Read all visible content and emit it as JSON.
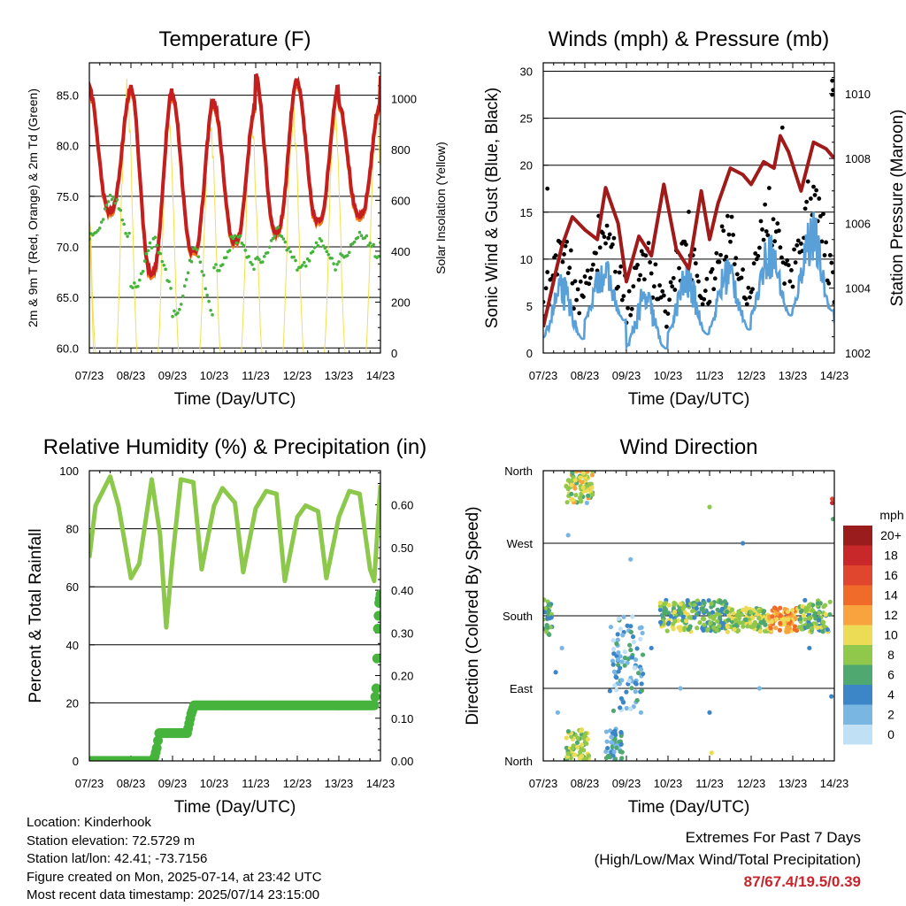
{
  "station": {
    "location": "Location: Kinderhook",
    "elevation": "Station elevation: 72.5729 m",
    "latlon": "Station lat/lon: 42.41; -73.7156",
    "created": "Figure created on Mon, 2025-07-14, at 23:42 UTC",
    "latest": "Most recent data timestamp: 2025/07/14 23:15:00"
  },
  "extremes": {
    "title": "Extremes For Past 7 Days",
    "subtitle": "(High/Low/Max Wind/Total Precipitation)",
    "values": "87/67.4/19.5/0.39"
  },
  "colors": {
    "temp_2m": "#c41e1e",
    "temp_9m": "#f07c1e",
    "dewpoint": "#46b43c",
    "solar": "#f2de50",
    "gust": "#000000",
    "wind": "#5aa0d8",
    "pressure": "#a01a1a",
    "rh": "#8cc84b",
    "precip": "#46b43c"
  },
  "chart_data": [
    {
      "id": "temperature",
      "type": "line",
      "title": "Temperature (F)",
      "xlabel": "Time (Day/UTC)",
      "ylabel": "2m & 9m T (Red, Orange) & 2m Td (Green)",
      "ylabel_right": "Solar Insolation (Yellow)",
      "x_ticks": [
        "07/23",
        "08/23",
        "09/23",
        "10/23",
        "11/23",
        "12/23",
        "13/23",
        "14/23"
      ],
      "ylim": [
        59.5,
        88.2
      ],
      "y_ticks": [
        "60.0",
        "65.0",
        "70.0",
        "75.0",
        "80.0",
        "85.0"
      ],
      "y_tick_values": [
        60,
        65,
        70,
        75,
        80,
        85
      ],
      "y2lim": [
        0,
        1140
      ],
      "y2_ticks": [
        "0",
        "200",
        "400",
        "600",
        "800",
        "1000"
      ],
      "y2_tick_values": [
        0,
        200,
        400,
        600,
        800,
        1000
      ],
      "grid": true,
      "daily_temp_2m": [
        {
          "day": 0,
          "max": 85.5,
          "min": 73.5
        },
        {
          "day": 1,
          "max": 85.8,
          "min": 67.4
        },
        {
          "day": 2,
          "max": 84.8,
          "min": 69.5
        },
        {
          "day": 3,
          "max": 84.0,
          "min": 70.5
        },
        {
          "day": 4,
          "max": 86.8,
          "min": 71.5
        },
        {
          "day": 5,
          "max": 86.0,
          "min": 72.5
        },
        {
          "day": 6,
          "max": 84.2,
          "min": 73.0
        },
        {
          "day": 7,
          "max": 87.0,
          "min": 72.0
        }
      ],
      "daily_dewpoint": [
        {
          "day": 0,
          "max": 75.0,
          "min": 71.0
        },
        {
          "day": 1,
          "max": 70.5,
          "min": 66.0
        },
        {
          "day": 2,
          "max": 69.5,
          "min": 63.5
        },
        {
          "day": 3,
          "max": 71.0,
          "min": 68.0
        },
        {
          "day": 4,
          "max": 71.5,
          "min": 68.5
        },
        {
          "day": 5,
          "max": 70.5,
          "min": 68.0
        },
        {
          "day": 6,
          "max": 71.0,
          "min": 69.0
        },
        {
          "day": 7,
          "max": 74.0,
          "min": 71.0
        }
      ],
      "daily_solar_peak": [
        850,
        1100,
        980,
        1000,
        980,
        1010,
        990,
        1030
      ]
    },
    {
      "id": "winds",
      "type": "scatter",
      "title": "Winds (mph) & Pressure (mb)",
      "xlabel": "Time (Day/UTC)",
      "ylabel": "Sonic Wind & Gust (Blue, Black)",
      "ylabel_right": "Station Pressure (Maroon)",
      "x_ticks": [
        "07/23",
        "08/23",
        "09/23",
        "10/23",
        "11/23",
        "12/23",
        "13/23",
        "14/23"
      ],
      "ylim": [
        0,
        30.9
      ],
      "y_ticks": [
        "0",
        "5",
        "10",
        "15",
        "20",
        "25",
        "30"
      ],
      "y_tick_values": [
        0,
        5,
        10,
        15,
        20,
        25,
        30
      ],
      "y2lim": [
        1002,
        1010.95
      ],
      "y2_ticks": [
        "1002",
        "1004",
        "1006",
        "1008",
        "1010"
      ],
      "y2_tick_values": [
        1002,
        1004,
        1006,
        1008,
        1010
      ],
      "grid": true,
      "pressure": {
        "x": [
          0.0,
          0.3,
          0.45,
          0.7,
          1.0,
          1.3,
          1.5,
          1.8,
          2.0,
          2.3,
          2.6,
          2.9,
          3.2,
          3.5,
          3.8,
          4.0,
          4.2,
          4.5,
          4.8,
          5.0,
          5.3,
          5.55,
          5.7,
          5.9,
          6.2,
          6.5,
          6.8,
          7.0
        ],
        "y": [
          1002.8,
          1004.5,
          1005.3,
          1006.2,
          1005.8,
          1005.5,
          1007.1,
          1006.0,
          1004.2,
          1005.6,
          1005.0,
          1007.2,
          1005.2,
          1004.6,
          1007.0,
          1005.5,
          1006.6,
          1007.7,
          1007.5,
          1007.2,
          1007.9,
          1007.7,
          1008.7,
          1008.2,
          1007.0,
          1008.5,
          1008.3,
          1008.0
        ]
      },
      "wind_baseline": [
        {
          "day": 0,
          "low": 1.5,
          "high": 6.5
        },
        {
          "day": 1,
          "low": 3.5,
          "high": 8.5
        },
        {
          "day": 2,
          "low": 0.5,
          "high": 5.5
        },
        {
          "day": 3,
          "low": 2.0,
          "high": 7.5
        },
        {
          "day": 4,
          "low": 2.5,
          "high": 8.5
        },
        {
          "day": 5,
          "low": 4.0,
          "high": 10.5
        },
        {
          "day": 6,
          "low": 4.5,
          "high": 12.5
        },
        {
          "day": 7,
          "low": 3.0,
          "high": 10.0
        }
      ],
      "gust_extremes": [
        {
          "x": 6.95,
          "y": 29.0
        },
        {
          "x": 6.95,
          "y": 27.5
        },
        {
          "x": 6.97,
          "y": 28.0
        },
        {
          "x": 5.75,
          "y": 24.0
        },
        {
          "x": 0.1,
          "y": 17.5
        }
      ]
    },
    {
      "id": "humidity",
      "type": "line",
      "title": "Relative Humidity (%) & Precipitation (in)",
      "xlabel": "Time (Day/UTC)",
      "ylabel": "Percent & Total Rainfall",
      "x_ticks": [
        "07/23",
        "08/23",
        "09/23",
        "10/23",
        "11/23",
        "12/23",
        "13/23",
        "14/23"
      ],
      "ylim": [
        0,
        100
      ],
      "y_ticks": [
        "0",
        "20",
        "40",
        "60",
        "80",
        "100"
      ],
      "y_tick_values": [
        0,
        20,
        40,
        60,
        80,
        100
      ],
      "y2lim": [
        0,
        0.68
      ],
      "y2_ticks": [
        "0.00",
        "0.10",
        "0.20",
        "0.30",
        "0.40",
        "0.50",
        "0.60"
      ],
      "y2_tick_values": [
        0,
        0.1,
        0.2,
        0.3,
        0.4,
        0.5,
        0.6
      ],
      "grid": true,
      "rh": {
        "x": [
          0.0,
          0.15,
          0.5,
          0.7,
          1.0,
          1.2,
          1.5,
          1.7,
          1.85,
          2.0,
          2.2,
          2.5,
          2.7,
          3.0,
          3.2,
          3.5,
          3.7,
          4.0,
          4.25,
          4.5,
          4.7,
          5.0,
          5.2,
          5.5,
          5.7,
          6.0,
          6.25,
          6.5,
          6.75,
          6.85,
          7.0
        ],
        "y": [
          70,
          88,
          98,
          88,
          63,
          68,
          97,
          78,
          46,
          70,
          97,
          96,
          66,
          88,
          94,
          89,
          65,
          87,
          93,
          92,
          62,
          84,
          88,
          86,
          63,
          84,
          93,
          92,
          66,
          62,
          95
        ]
      },
      "precip": {
        "x": [
          0.0,
          1.55,
          1.62,
          1.68,
          2.35,
          2.45,
          2.52,
          6.85,
          6.9,
          6.94,
          6.97,
          7.0
        ],
        "y": [
          0.0,
          0.0,
          0.03,
          0.065,
          0.065,
          0.11,
          0.13,
          0.13,
          0.17,
          0.31,
          0.37,
          0.39
        ]
      }
    },
    {
      "id": "direction",
      "type": "scatter",
      "title": "Wind Direction",
      "xlabel": "Time (Day/UTC)",
      "ylabel": "Direction (Colored By Speed)",
      "x_ticks": [
        "07/23",
        "08/23",
        "09/23",
        "10/23",
        "11/23",
        "12/23",
        "13/23",
        "14/23"
      ],
      "y_ticks": [
        "North",
        "East",
        "South",
        "West",
        "North"
      ],
      "y_tick_values": [
        0,
        90,
        180,
        270,
        360
      ],
      "ylim": [
        0,
        360
      ],
      "grid": true,
      "legend_title": "mph",
      "legend_labels": [
        "20+",
        "18",
        "16",
        "14",
        "12",
        "10",
        "8",
        "6",
        "4",
        "2",
        "0"
      ],
      "legend_colors": [
        "#9b1c1c",
        "#c8282a",
        "#e0462d",
        "#f06a2a",
        "#f8a33e",
        "#ecdc55",
        "#8fc84a",
        "#4fa870",
        "#3c86c8",
        "#7ab6e2",
        "#c0e0f6"
      ],
      "clusters": [
        {
          "x0": 0.0,
          "x1": 0.25,
          "d0": 155,
          "d1": 200,
          "speed": 6
        },
        {
          "x0": 0.55,
          "x1": 1.2,
          "d0": 320,
          "d1": 360,
          "speed": 9
        },
        {
          "x0": 0.55,
          "x1": 1.1,
          "d0": 0,
          "d1": 40,
          "speed": 8
        },
        {
          "x0": 1.5,
          "x1": 1.9,
          "d0": 0,
          "d1": 40,
          "speed": 4
        },
        {
          "x0": 1.6,
          "x1": 2.4,
          "d0": 60,
          "d1": 180,
          "speed": 3
        },
        {
          "x0": 2.8,
          "x1": 3.6,
          "d0": 160,
          "d1": 200,
          "speed": 7
        },
        {
          "x0": 3.6,
          "x1": 4.4,
          "d0": 160,
          "d1": 200,
          "speed": 6
        },
        {
          "x0": 4.4,
          "x1": 5.4,
          "d0": 160,
          "d1": 190,
          "speed": 8
        },
        {
          "x0": 5.4,
          "x1": 6.1,
          "d0": 160,
          "d1": 190,
          "speed": 12
        },
        {
          "x0": 6.1,
          "x1": 6.9,
          "d0": 160,
          "d1": 200,
          "speed": 7
        }
      ],
      "scattered": [
        {
          "x": 0.35,
          "d": 60,
          "speed": 1
        },
        {
          "x": 0.45,
          "d": 140,
          "speed": 2
        },
        {
          "x": 0.6,
          "d": 280,
          "speed": 1
        },
        {
          "x": 0.3,
          "d": 110,
          "speed": 3
        },
        {
          "x": 1.05,
          "d": 320,
          "speed": 2
        },
        {
          "x": 2.1,
          "d": 250,
          "speed": 1
        },
        {
          "x": 2.6,
          "d": 140,
          "speed": 4
        },
        {
          "x": 3.3,
          "d": 90,
          "speed": 1
        },
        {
          "x": 4.0,
          "d": 60,
          "speed": 4
        },
        {
          "x": 4.05,
          "d": 10,
          "speed": 10
        },
        {
          "x": 4.0,
          "d": 315,
          "speed": 8
        },
        {
          "x": 4.8,
          "d": 270,
          "speed": 4
        },
        {
          "x": 5.2,
          "d": 90,
          "speed": 2
        },
        {
          "x": 6.4,
          "d": 140,
          "speed": 3
        },
        {
          "x": 6.95,
          "d": 320,
          "speed": 18
        },
        {
          "x": 6.95,
          "d": 325,
          "speed": 16
        },
        {
          "x": 6.93,
          "d": 80,
          "speed": 3
        },
        {
          "x": 6.97,
          "d": 300,
          "speed": 6
        }
      ]
    }
  ]
}
